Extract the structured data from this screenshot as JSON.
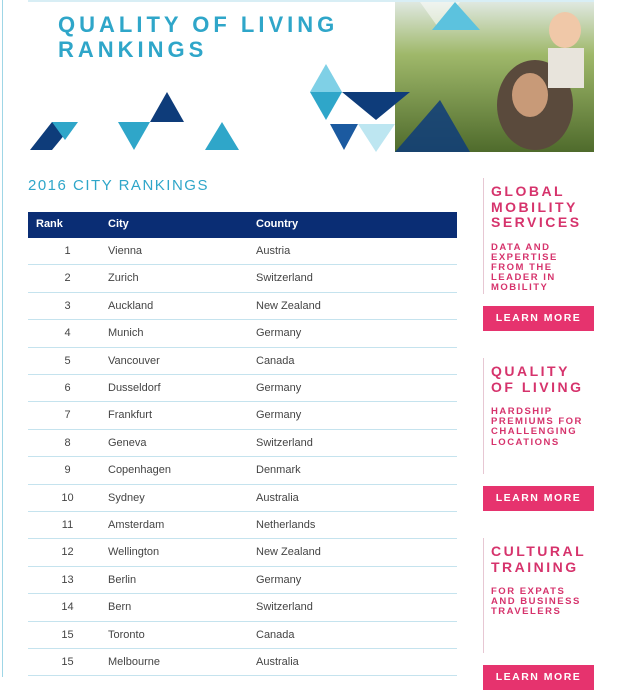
{
  "header": {
    "title_lines": [
      "QUALITY OF LIVING",
      "RANKINGS"
    ]
  },
  "section_title": "2016 CITY RANKINGS",
  "table": {
    "columns": [
      "Rank",
      "City",
      "Country"
    ],
    "rows": [
      [
        1,
        "Vienna",
        "Austria"
      ],
      [
        2,
        "Zurich",
        "Switzerland"
      ],
      [
        3,
        "Auckland",
        "New Zealand"
      ],
      [
        4,
        "Munich",
        "Germany"
      ],
      [
        5,
        "Vancouver",
        "Canada"
      ],
      [
        6,
        "Dusseldorf",
        "Germany"
      ],
      [
        7,
        "Frankfurt",
        "Germany"
      ],
      [
        8,
        "Geneva",
        "Switzerland"
      ],
      [
        9,
        "Copenhagen",
        "Denmark"
      ],
      [
        10,
        "Sydney",
        "Australia"
      ],
      [
        11,
        "Amsterdam",
        "Netherlands"
      ],
      [
        12,
        "Wellington",
        "New Zealand"
      ],
      [
        13,
        "Berlin",
        "Germany"
      ],
      [
        14,
        "Bern",
        "Switzerland"
      ],
      [
        15,
        "Toronto",
        "Canada"
      ],
      [
        15,
        "Melbourne",
        "Australia"
      ]
    ]
  },
  "sidebar": [
    {
      "title_lines": [
        "GLOBAL",
        "MOBILITY",
        "SERVICES"
      ],
      "text_lines": [
        "DATA AND",
        "EXPERTISE",
        "FROM THE",
        "LEADER IN",
        "MOBILITY"
      ],
      "button": "LEARN MORE"
    },
    {
      "title_lines": [
        "QUALITY",
        "OF LIVING"
      ],
      "text_lines": [
        "HARDSHIP",
        "PREMIUMS FOR",
        "CHALLENGING",
        "LOCATIONS"
      ],
      "button": "LEARN MORE"
    },
    {
      "title_lines": [
        "CULTURAL",
        "TRAINING"
      ],
      "text_lines": [
        "FOR EXPATS",
        "AND BUSINESS",
        "TRAVELERS"
      ],
      "button": "LEARN MORE"
    }
  ]
}
